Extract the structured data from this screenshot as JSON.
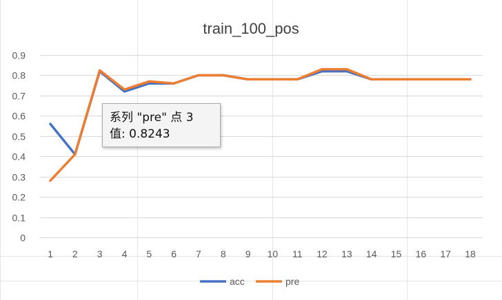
{
  "chart_data": {
    "type": "line",
    "title": "train_100_pos",
    "xlabel": "",
    "ylabel": "",
    "categories": [
      "1",
      "2",
      "3",
      "4",
      "5",
      "6",
      "7",
      "8",
      "9",
      "10",
      "11",
      "12",
      "13",
      "14",
      "15",
      "16",
      "17",
      "18"
    ],
    "ylim": [
      0,
      0.9
    ],
    "yticks": [
      "0",
      "0.1",
      "0.2",
      "0.3",
      "0.4",
      "0.5",
      "0.6",
      "0.7",
      "0.8",
      "0.9"
    ],
    "grid": true,
    "legend_position": "bottom",
    "series": [
      {
        "name": "acc",
        "color": "#4472c4",
        "values": [
          0.56,
          0.41,
          0.82,
          0.72,
          0.76,
          0.76,
          0.8,
          0.8,
          0.78,
          0.78,
          0.78,
          0.82,
          0.82,
          0.78,
          0.78,
          0.78,
          0.78,
          0.78
        ]
      },
      {
        "name": "pre",
        "color": "#ed7d31",
        "values": [
          0.28,
          0.41,
          0.8243,
          0.73,
          0.77,
          0.76,
          0.8,
          0.8,
          0.78,
          0.78,
          0.78,
          0.83,
          0.83,
          0.78,
          0.78,
          0.78,
          0.78,
          0.78
        ]
      }
    ]
  },
  "tooltip": {
    "line1": "系列 \"pre\" 点 3",
    "line2": "值: 0.8243"
  }
}
